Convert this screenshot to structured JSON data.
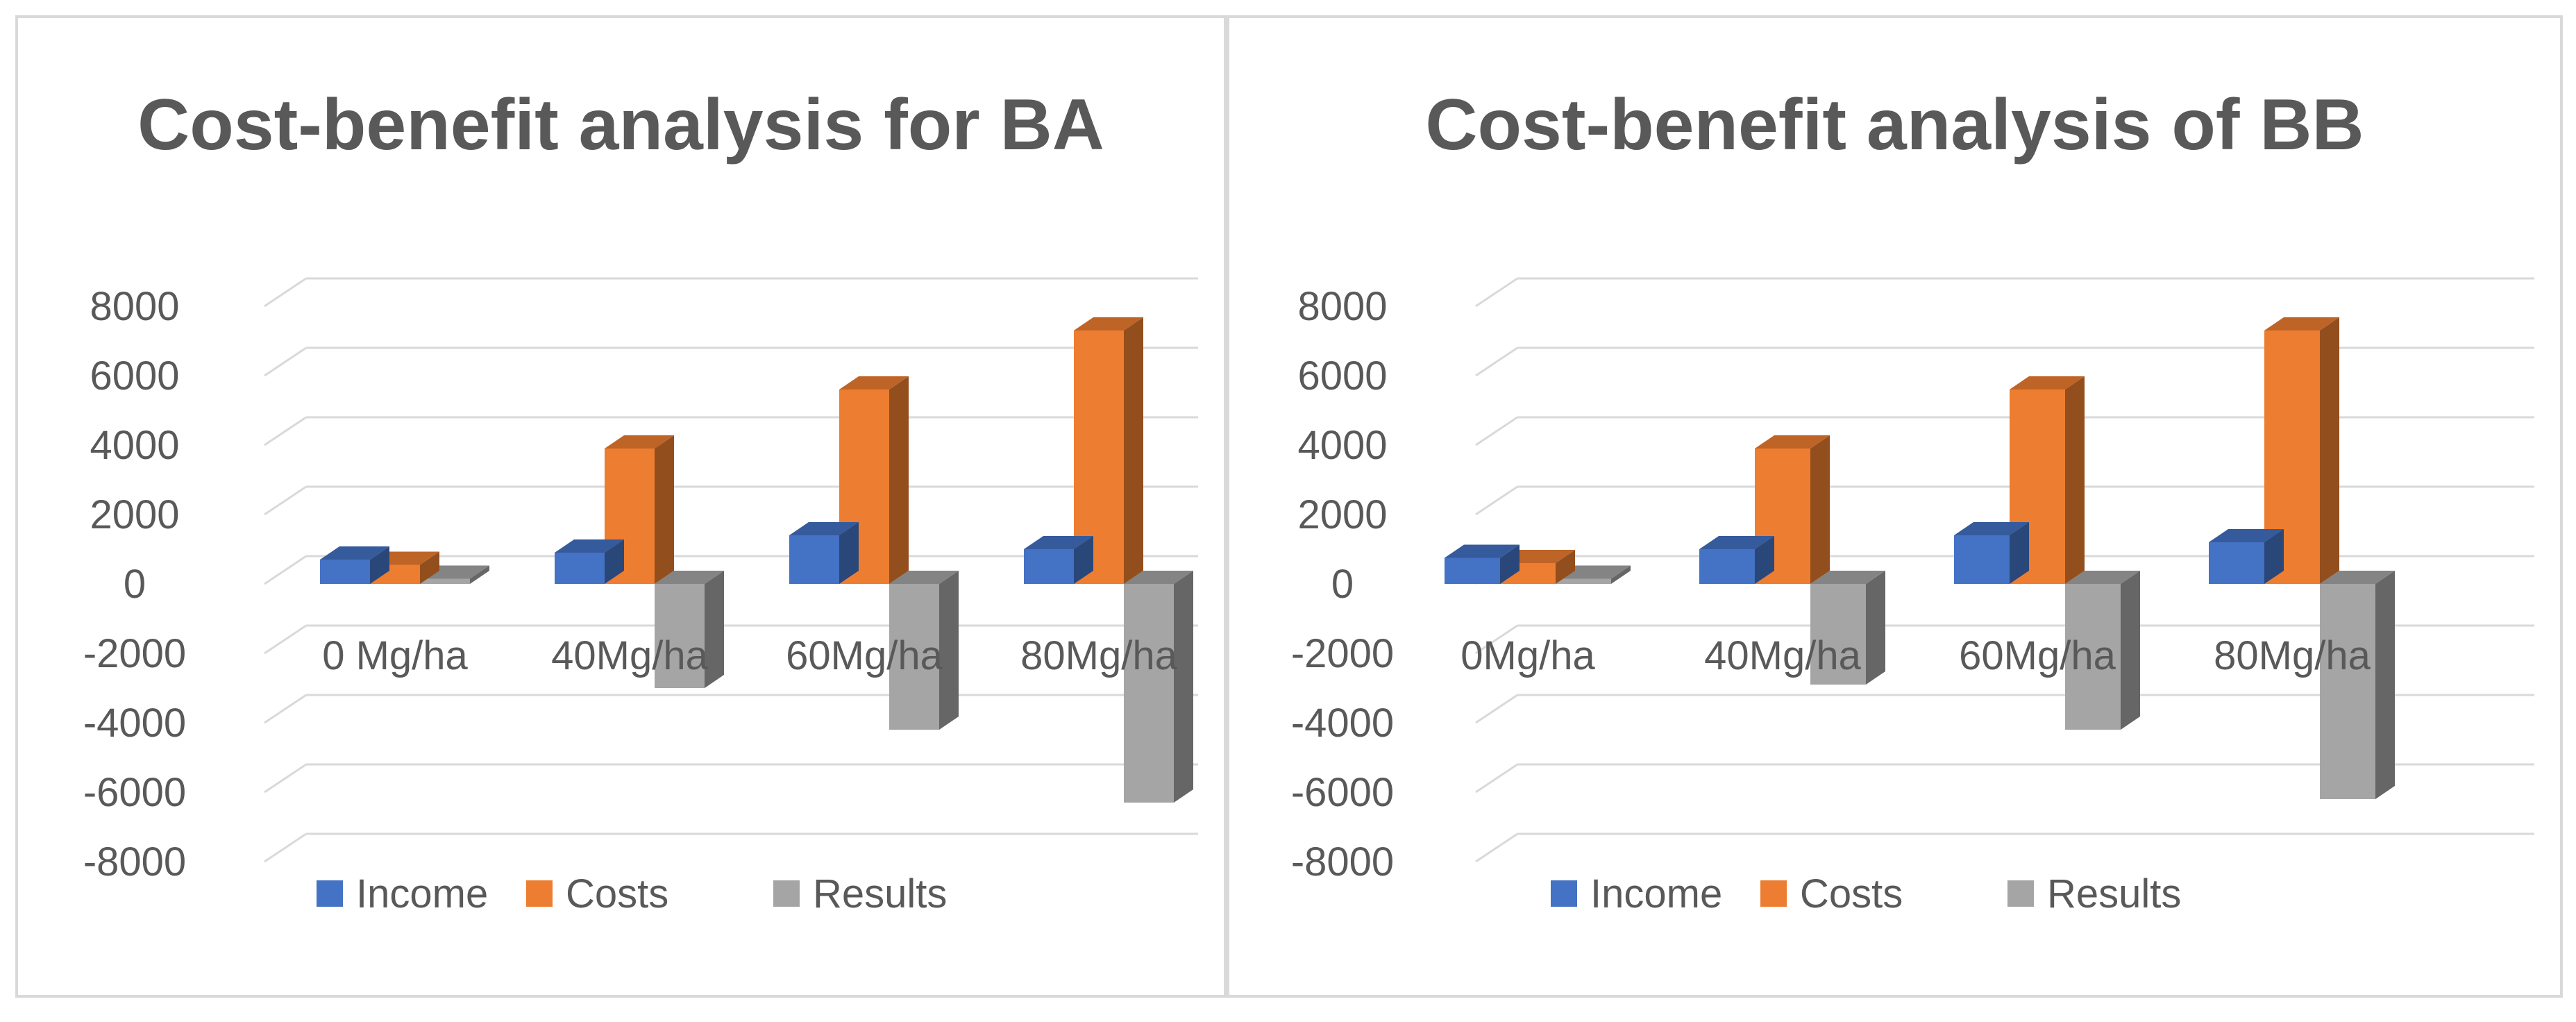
{
  "chart_data": [
    {
      "type": "bar",
      "title": "Cost-benefit analysis for BA",
      "categories": [
        "0 Mg/ha",
        "40Mg/ha",
        "60Mg/ha",
        "80Mg/ha"
      ],
      "series": [
        {
          "name": "Income",
          "values": [
            700,
            900,
            1400,
            1000
          ]
        },
        {
          "name": "Costs",
          "values": [
            550,
            3900,
            5600,
            7300
          ]
        },
        {
          "name": "Results",
          "values": [
            150,
            -3000,
            -4200,
            -6300
          ]
        }
      ],
      "yticks": [
        "8000",
        "6000",
        "4000",
        "2000",
        "0",
        "-2000",
        "-4000",
        "-6000",
        "-8000"
      ],
      "ylim": [
        -8000,
        8000
      ],
      "legend": [
        "Income",
        "Costs",
        "Results"
      ],
      "colors": {
        "Income": "#4472c4",
        "Costs": "#ed7d31",
        "Results": "#a5a5a5"
      }
    },
    {
      "type": "bar",
      "title": "Cost-benefit analysis of BB",
      "categories": [
        "0Mg/ha",
        "40Mg/ha",
        "60Mg/ha",
        "80Mg/ha"
      ],
      "series": [
        {
          "name": "Income",
          "values": [
            750,
            1000,
            1400,
            1200
          ]
        },
        {
          "name": "Costs",
          "values": [
            600,
            3900,
            5600,
            7300
          ]
        },
        {
          "name": "Results",
          "values": [
            150,
            -2900,
            -4200,
            -6200
          ]
        }
      ],
      "yticks": [
        "8000",
        "6000",
        "4000",
        "2000",
        "0",
        "-2000",
        "-4000",
        "-6000",
        "-8000"
      ],
      "ylim": [
        -8000,
        8000
      ],
      "legend": [
        "Income",
        "Costs",
        "Results"
      ],
      "colors": {
        "Income": "#4472c4",
        "Costs": "#ed7d31",
        "Results": "#a5a5a5"
      }
    }
  ]
}
